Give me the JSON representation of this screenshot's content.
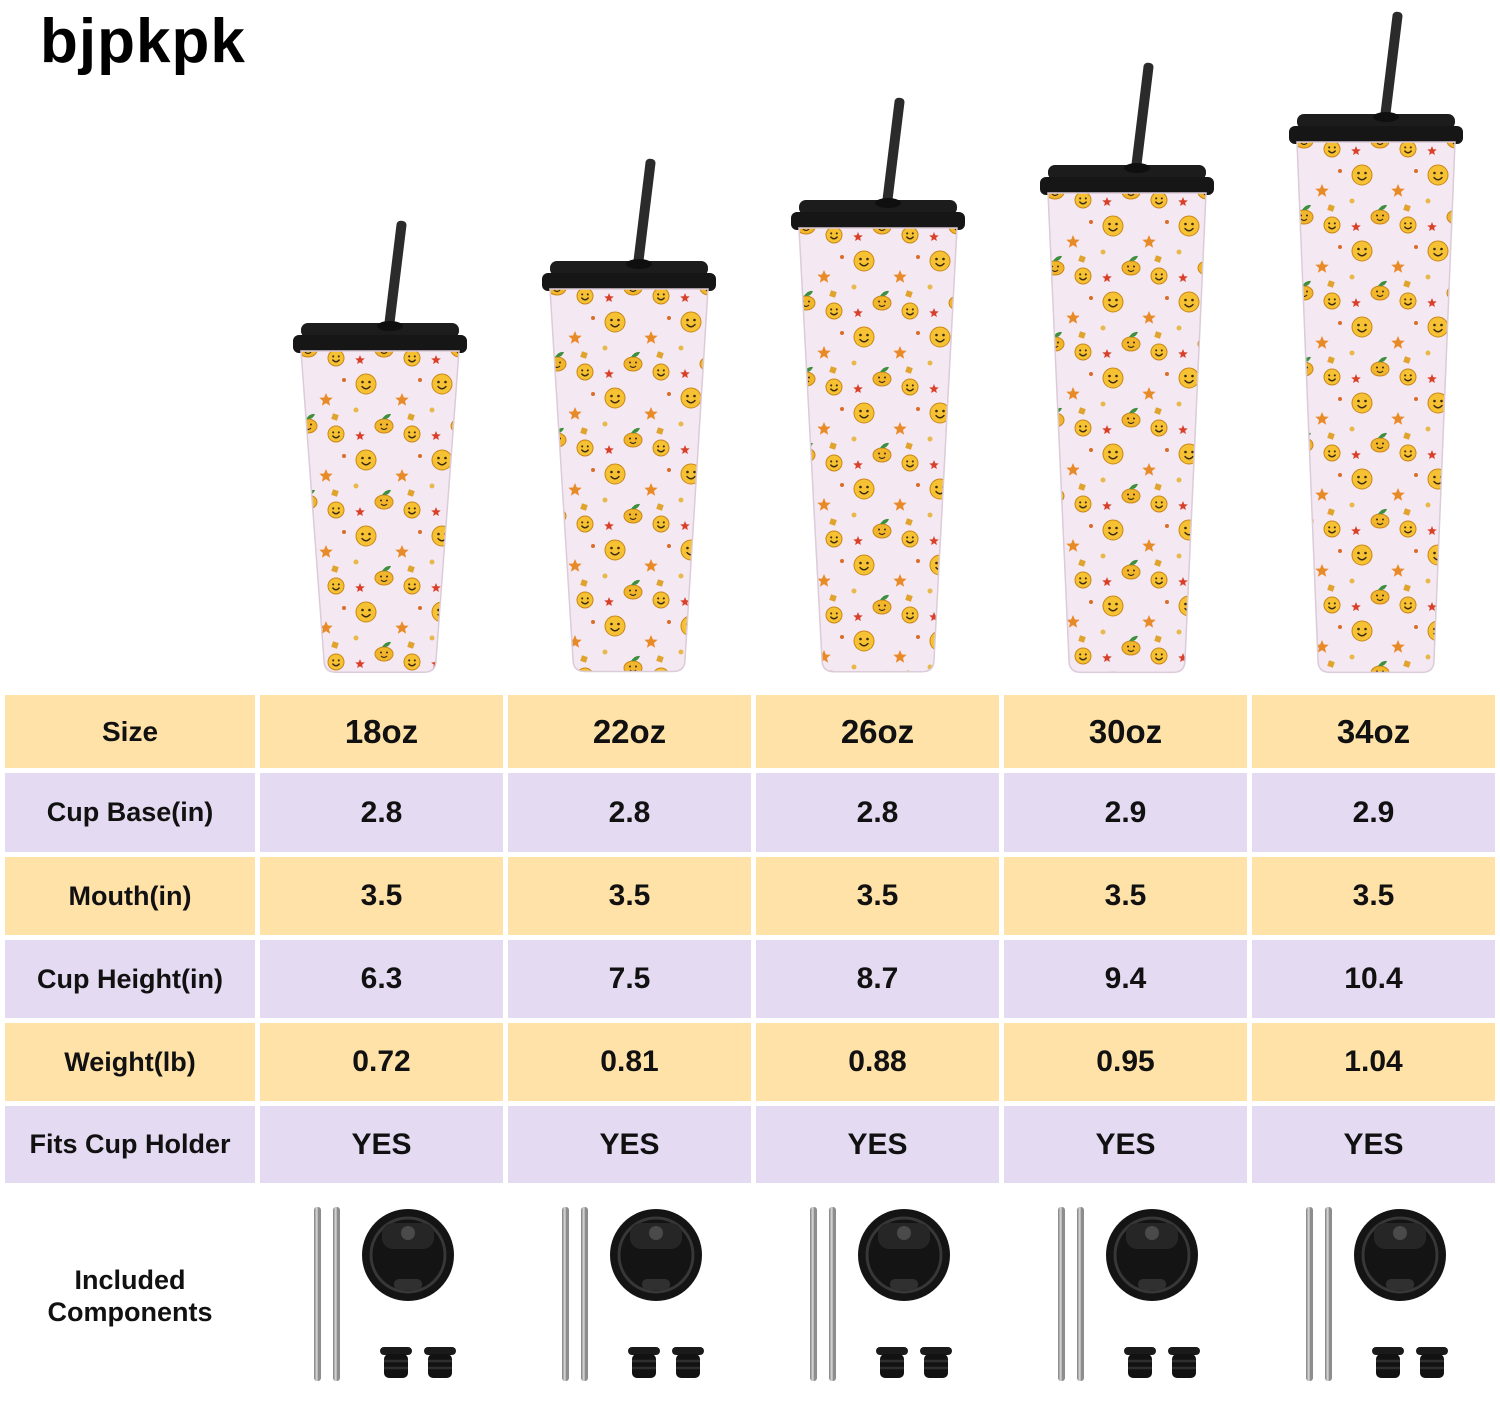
{
  "brand": {
    "logo_text": "bjpkpk"
  },
  "hero": {
    "products": [
      {
        "size": "18oz"
      },
      {
        "size": "22oz"
      },
      {
        "size": "26oz"
      },
      {
        "size": "30oz"
      },
      {
        "size": "34oz"
      }
    ]
  },
  "chart_data": {
    "type": "table",
    "columns": [
      "Size",
      "18oz",
      "22oz",
      "26oz",
      "30oz",
      "34oz"
    ],
    "rows": [
      {
        "label": "Size",
        "values": [
          "18oz",
          "22oz",
          "26oz",
          "30oz",
          "34oz"
        ],
        "kind": "header"
      },
      {
        "label": "Cup Base(in)",
        "values": [
          "2.8",
          "2.8",
          "2.8",
          "2.9",
          "2.9"
        ],
        "kind": "text"
      },
      {
        "label": "Mouth(in)",
        "values": [
          "3.5",
          "3.5",
          "3.5",
          "3.5",
          "3.5"
        ],
        "kind": "text"
      },
      {
        "label": "Cup Height(in)",
        "values": [
          "6.3",
          "7.5",
          "8.7",
          "9.4",
          "10.4"
        ],
        "kind": "text"
      },
      {
        "label": "Weight(lb)",
        "values": [
          "0.72",
          "0.81",
          "0.88",
          "0.95",
          "1.04"
        ],
        "kind": "text"
      },
      {
        "label": "Fits Cup Holder",
        "values": [
          "YES",
          "YES",
          "YES",
          "YES",
          "YES"
        ],
        "kind": "text"
      },
      {
        "label": "Included Components",
        "values": [
          "components-set",
          "components-set",
          "components-set",
          "components-set",
          "components-set"
        ],
        "kind": "image"
      }
    ]
  },
  "included_components_icons": [
    "metal-straws-icon",
    "flip-lid-icon",
    "straw-stoppers-icon"
  ],
  "colors": {
    "row_peach": "#FFE2A8",
    "row_lavender": "#E4DAF2",
    "cup_body": "#F4E9F2",
    "lid_black": "#1C1C1C",
    "accent_yellow": "#F6C133"
  }
}
